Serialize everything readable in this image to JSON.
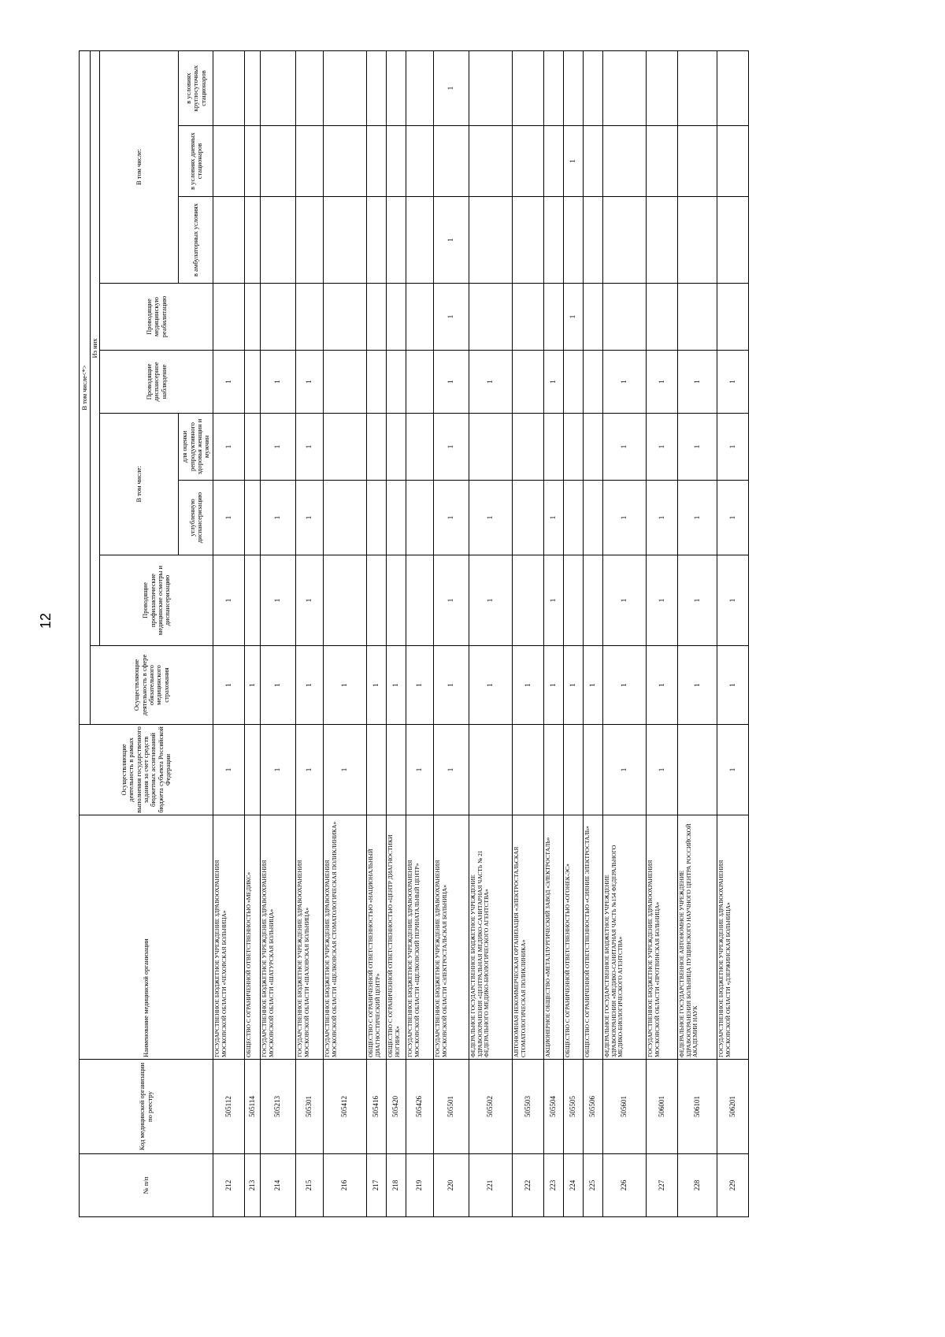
{
  "page_number": "12",
  "table": {
    "header": {
      "num": "№ п/п",
      "code": "Код медицинской организации по реестру",
      "name": "Наименование медицинской организации",
      "budget": "Осуществляющие деятельность в рамках выполнения государственного задания за счет средств бюджетных ассигнований бюджета субъекта Российской Федерации",
      "oms": "Осуществляющие деятельность в сфере обязательного медицинского страхования",
      "incl_star": "В том числе<*>",
      "of_which": "Из них",
      "prophyl": "Проводящие профилактические медицинские осмотры и диспансеризацию",
      "incl1": "В том числе:",
      "in_depth": "углубленную диспансеризацию",
      "reproductive": "для оценки репродуктивного здоровья женщин и мужчин",
      "dispensary": "Проводящие диспансерное наблюдение",
      "rehab": "Проводящие медицинскую реабилитацию",
      "incl2": "В том числе:",
      "outpatient": "в амбулаторных условиях",
      "day": "в условиях дневных стационаров",
      "round": "в условиях круглосуточных стационаров"
    },
    "rows": [
      [
        "212",
        "505112",
        "ГОСУДАРСТВЕННОЕ БЮДЖЕТНОЕ УЧРЕЖДЕНИЕ ЗДРАВООХРАНЕНИЯ МОСКОВСКОЙ ОБЛАСТИ «ЧЕХОВСКАЯ БОЛЬНИЦА»",
        1,
        1,
        1,
        1,
        1,
        1,
        null,
        null,
        null,
        null
      ],
      [
        "213",
        "505114",
        "ОБЩЕСТВО С ОГРАНИЧЕННОЙ ОТВЕТСТВЕННОСТЬЮ «МЕДИКС»",
        null,
        1,
        null,
        null,
        null,
        null,
        null,
        null,
        null,
        null
      ],
      [
        "214",
        "505213",
        "ГОСУДАРСТВЕННОЕ БЮДЖЕТНОЕ УЧРЕЖДЕНИЕ ЗДРАВООХРАНЕНИЯ МОСКОВСКОЙ ОБЛАСТИ «ШАТУРСКАЯ БОЛЬНИЦА»",
        1,
        1,
        1,
        1,
        1,
        1,
        null,
        null,
        null,
        null
      ],
      [
        "215",
        "505301",
        "ГОСУДАРСТВЕННОЕ БЮДЖЕТНОЕ УЧРЕЖДЕНИЕ ЗДРАВООХРАНЕНИЯ МОСКОВСКОЙ ОБЛАСТИ «ШАХОВСКАЯ БОЛЬНИЦА»",
        1,
        1,
        1,
        1,
        1,
        1,
        null,
        null,
        null,
        null
      ],
      [
        "216",
        "505412",
        "ГОСУДАРСТВЕННОЕ БЮДЖЕТНОЕ УЧРЕЖДЕНИЕ ЗДРАВООХРАНЕНИЯ МОСКОВСКОЙ ОБЛАСТИ «ЩЕЛКОВСКАЯ СТОМАТОЛОГИЧЕСКАЯ ПОЛИКЛИНИКА»",
        1,
        1,
        null,
        null,
        null,
        null,
        null,
        null,
        null,
        null
      ],
      [
        "217",
        "505416",
        "ОБЩЕСТВО С ОГРАНИЧЕННОЙ ОТВЕТСТВЕННОСТЬЮ «НАЦИОНАЛЬНЫЙ ДИАГНОСТИЧЕСКИЙ ЦЕНТР»",
        null,
        1,
        null,
        null,
        null,
        null,
        null,
        null,
        null,
        null
      ],
      [
        "218",
        "505420",
        "ОБЩЕСТВО С ОГРАНИЧЕННОЙ ОТВЕТСТВЕННОСТЬЮ «ЦЕНТР ДИАГНОСТИКИ НОГИНСК»",
        null,
        1,
        null,
        null,
        null,
        null,
        null,
        null,
        null,
        null
      ],
      [
        "219",
        "505426",
        "ГОСУДАРСТВЕННОЕ БЮДЖЕТНОЕ УЧРЕЖДЕНИЕ ЗДРАВООХРАНЕНИЯ МОСКОВСКОЙ ОБЛАСТИ «ЩЕЛКОВСКИЙ ПЕРИНАТАЛЬНЫЙ ЦЕНТР»",
        1,
        1,
        null,
        null,
        null,
        null,
        null,
        null,
        null,
        null
      ],
      [
        "220",
        "505501",
        "ГОСУДАРСТВЕННОЕ БЮДЖЕТНОЕ УЧРЕЖДЕНИЕ ЗДРАВООХРАНЕНИЯ МОСКОВСКОЙ ОБЛАСТИ «ЭЛЕКТРОСТАЛЬСКАЯ БОЛЬНИЦА»",
        1,
        1,
        1,
        1,
        1,
        1,
        1,
        1,
        null,
        1
      ],
      [
        "221",
        "505502",
        "ФЕДЕРАЛЬНОЕ ГОСУДАРСТВЕННОЕ БЮДЖЕТНОЕ УЧРЕЖДЕНИЕ ЗДРАВООХРАНЕНИЯ «ЦЕНТРАЛЬНАЯ МЕДИКО-САНИТАРНАЯ ЧАСТЬ № 21 ФЕДЕРАЛЬНОГО МЕДИКО-БИОЛОГИЧЕСКОГО АГЕНТСТВА»",
        null,
        1,
        1,
        1,
        null,
        1,
        null,
        null,
        null,
        null
      ],
      [
        "222",
        "505503",
        "АВТОНОМНАЯ НЕКОММЕРЧЕСКАЯ ОРГАНИЗАЦИЯ «ЭЛЕКТРОСТАЛЬСКАЯ СТОМАТОЛОГИЧЕСКАЯ ПОЛИКЛИНИКА»",
        null,
        1,
        null,
        null,
        null,
        null,
        null,
        null,
        null,
        null
      ],
      [
        "223",
        "505504",
        "АКЦИОНЕРНОЕ ОБЩЕСТВО «МЕТАЛЛУРГИЧЕСКИЙ ЗАВОД «ЭЛЕКТРОСТАЛЬ»",
        null,
        1,
        1,
        1,
        null,
        1,
        null,
        null,
        null,
        null
      ],
      [
        "224",
        "505505",
        "ОБЩЕСТВО С ОГРАНИЧЕННОЙ ОТВЕТСТВЕННОСТЬЮ «ОГОНЕК-ЭС»",
        null,
        1,
        null,
        null,
        null,
        null,
        1,
        null,
        1,
        null
      ],
      [
        "225",
        "505506",
        "ОБЩЕСТВО С ОГРАНИЧЕННОЙ ОТВЕТСТВЕННОСТЬЮ «СИЯНИЕ ЭЛЕКТРОСТАЛЬ»",
        null,
        1,
        null,
        null,
        null,
        null,
        null,
        null,
        null,
        null
      ],
      [
        "226",
        "505601",
        "ФЕДЕРАЛЬНОЕ ГОСУДАРСТВЕННОЕ БЮДЖЕТНОЕ УЧРЕЖДЕНИЕ ЗДРАВООХРАНЕНИЯ «МЕДИКО-САНИТАРНАЯ ЧАСТЬ №154 ФЕДЕРАЛЬНОГО МЕДИКО-БИОЛОГИЧЕСКОГО АГЕНТСТВА»",
        1,
        1,
        1,
        1,
        1,
        1,
        null,
        null,
        null,
        null
      ],
      [
        "227",
        "506001",
        "ГОСУДАРСТВЕННОЕ БЮДЖЕТНОЕ УЧРЕЖДЕНИЕ ЗДРАВООХРАНЕНИЯ МОСКОВСКОЙ ОБЛАСТИ «ПРОТВИНСКАЯ БОЛЬНИЦА»",
        1,
        1,
        1,
        1,
        1,
        1,
        null,
        null,
        null,
        null
      ],
      [
        "228",
        "506101",
        "ФЕДЕРАЛЬНОЕ ГОСУДАРСТВЕННОЕ АВТОНОМНОЕ УЧРЕЖДЕНИЕ ЗДРАВООХРАНЕНИЯ БОЛЬНИЦА ПУЩИНСКОГО НАУЧНОГО ЦЕНТРА РОССИЙСКОЙ АКАДЕМИИ НАУК",
        null,
        1,
        1,
        1,
        1,
        1,
        null,
        null,
        null,
        null
      ],
      [
        "229",
        "506201",
        "ГОСУДАРСТВЕННОЕ БЮДЖЕТНОЕ УЧРЕЖДЕНИЕ ЗДРАВООХРАНЕНИЯ МОСКОВСКОЙ ОБЛАСТИ «ДЗЕРЖИНСКАЯ БОЛЬНИЦА»",
        1,
        1,
        1,
        1,
        1,
        1,
        null,
        null,
        null,
        null
      ]
    ]
  }
}
